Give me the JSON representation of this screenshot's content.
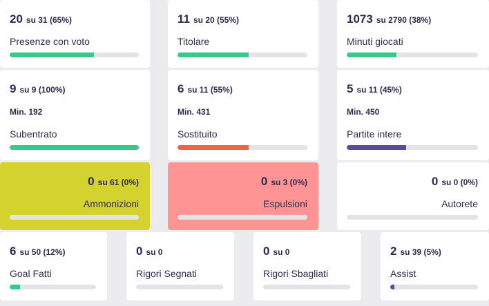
{
  "rows": [
    {
      "cards": [
        {
          "main": "20",
          "sub": "su 31 (65%)",
          "label": "Presenze con voto",
          "progress": 65,
          "color": "#35c98a"
        },
        {
          "main": "11",
          "sub": "su 20 (55%)",
          "label": "Titolare",
          "progress": 55,
          "color": "#35c98a"
        },
        {
          "main": "1073",
          "sub": "su 2790 (38%)",
          "label": "Minuti giocati",
          "progress": 38,
          "color": "#35c98a"
        }
      ]
    },
    {
      "cards": [
        {
          "main": "9",
          "sub": "su 9 (100%)",
          "min": "Min. 192",
          "label": "Subentrato",
          "progress": 100,
          "color": "#35c98a"
        },
        {
          "main": "6",
          "sub": "su 11 (55%)",
          "min": "Min. 431",
          "label": "Sostituito",
          "progress": 55,
          "color": "#f0653f"
        },
        {
          "main": "5",
          "sub": "su 11 (45%)",
          "min": "Min. 450",
          "label": "Partite intere",
          "progress": 45,
          "color": "#5a4b9c"
        }
      ]
    },
    {
      "cards": [
        {
          "main": "0",
          "sub": "su 61 (0%)",
          "label": "Ammonizioni",
          "progress": 0,
          "color": "#35c98a",
          "background": "#d4d22e"
        },
        {
          "main": "0",
          "sub": "su 3 (0%)",
          "label": "Espulsioni",
          "progress": 0,
          "color": "#35c98a",
          "background": "#ff9494"
        },
        {
          "main": "0",
          "sub": "su 0 (0%)",
          "label": "Autorete",
          "progress": 0,
          "color": "#35c98a",
          "background": "#ffffff"
        }
      ]
    },
    {
      "cards": [
        {
          "main": "6",
          "sub": "su 50 (12%)",
          "label": "Goal Fatti",
          "progress": 12,
          "color": "#35c98a"
        },
        {
          "main": "0",
          "sub": "su 0",
          "label": "Rigori Segnati",
          "progress": 0,
          "color": "#35c98a"
        },
        {
          "main": "0",
          "sub": "su 0",
          "label": "Rigori Sbagliati",
          "progress": 0,
          "color": "#35c98a"
        },
        {
          "main": "2",
          "sub": "su 39 (5%)",
          "label": "Assist",
          "progress": 5,
          "color": "#5a4b9c"
        }
      ]
    }
  ]
}
